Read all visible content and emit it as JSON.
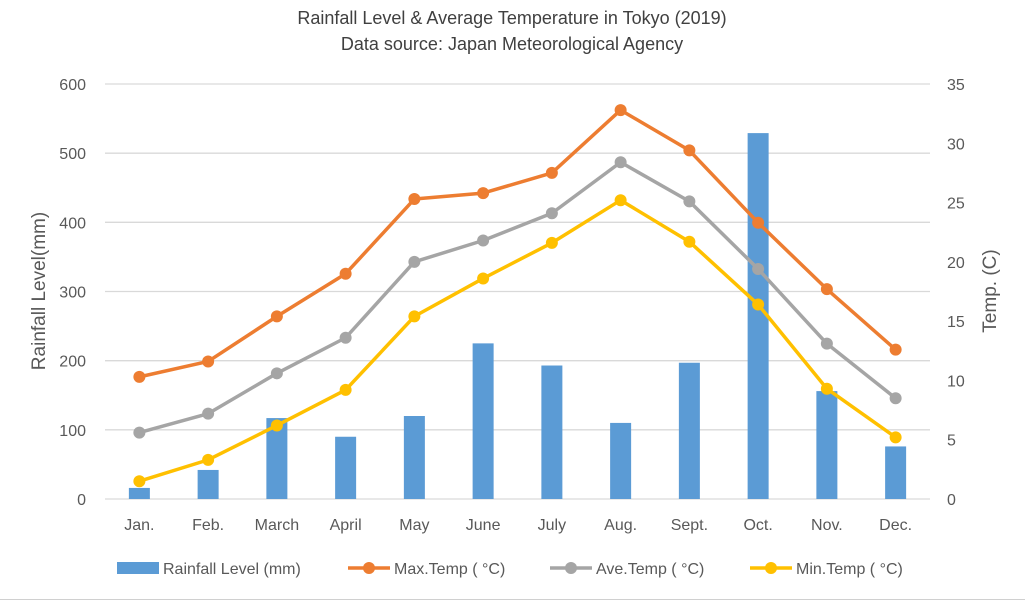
{
  "chart_data": {
    "type": "bar+line",
    "title": "Rainfall Level & Average Temperature in Tokyo (2019)",
    "subtitle": "Data source:  Japan Meteorological Agency",
    "categories": [
      "Jan.",
      "Feb.",
      "March",
      "April",
      "May",
      "June",
      "July",
      "Aug.",
      "Sept.",
      "Oct.",
      "Nov.",
      "Dec."
    ],
    "y_left": {
      "label": "Rainfall  Level(mm)",
      "range": [
        0,
        600
      ],
      "ticks": [
        "0",
        "100",
        "200",
        "300",
        "400",
        "500",
        "600"
      ]
    },
    "y_right": {
      "label": "Temp. (C)",
      "range": [
        0,
        35
      ],
      "ticks": [
        "0",
        "5",
        "10",
        "15",
        "20",
        "25",
        "30",
        "35"
      ]
    },
    "grid": true,
    "legend_position": "bottom",
    "series": [
      {
        "name": "Rainfall Level (mm)",
        "type": "bar",
        "axis": "left",
        "color": "#5B9BD5",
        "values": [
          16,
          42,
          117,
          90,
          120,
          225,
          193,
          110,
          197,
          529,
          156,
          76
        ]
      },
      {
        "name": "Max.Temp ( °C)",
        "type": "line",
        "axis": "right",
        "color": "#ED7D31",
        "values": [
          10.3,
          11.6,
          15.4,
          19.0,
          25.3,
          25.8,
          27.5,
          32.8,
          29.4,
          23.3,
          17.7,
          12.6
        ]
      },
      {
        "name": "Ave.Temp ( °C)",
        "type": "line",
        "axis": "right",
        "color": "#A5A5A5",
        "values": [
          5.6,
          7.2,
          10.6,
          13.6,
          20.0,
          21.8,
          24.1,
          28.4,
          25.1,
          19.4,
          13.1,
          8.5
        ]
      },
      {
        "name": "Min.Temp ( °C)",
        "type": "line",
        "axis": "right",
        "color": "#FFC000",
        "values": [
          1.5,
          3.3,
          6.2,
          9.2,
          15.4,
          18.6,
          21.6,
          25.2,
          21.7,
          16.4,
          9.3,
          5.2
        ]
      }
    ]
  }
}
